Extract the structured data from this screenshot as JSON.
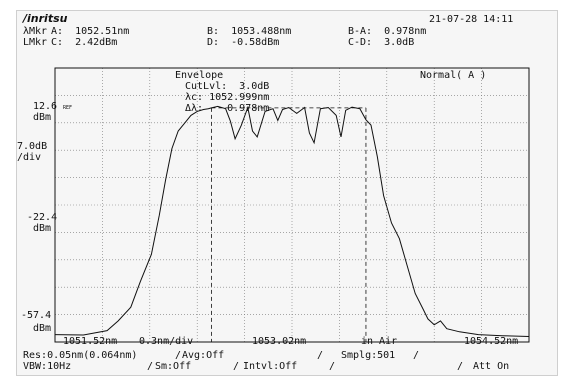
{
  "header": {
    "brand": "/inritsu",
    "datetime": "21-07-28 14:11"
  },
  "markers": {
    "row1_label": "λMkr",
    "row2_label": "LMkr",
    "A": "A:  1052.51nm",
    "B": "B:  1053.488nm",
    "BA": "B-A:  0.978nm",
    "C": "C:  2.42dBm",
    "D": "D:  -0.58dBm",
    "CD": "C-D:  3.0dB"
  },
  "analysis": {
    "title": "Envelope",
    "cutlvl": "CutLvl:  3.0dB",
    "lambda_c": "λc: 1052.999nm",
    "delta_lambda": "Δλ:    0.978nm",
    "mode": "Normal( A )"
  },
  "yaxis": {
    "ref_value": "12.6",
    "ref_unit": "dBm",
    "ref_tag": "REF",
    "scale_value": "7.0dB",
    "scale_unit": "/div",
    "mid_value": "-22.4",
    "mid_unit": "dBm",
    "bottom_value": "-57.4",
    "bottom_unit": "dBm"
  },
  "xaxis": {
    "start": "1051.52nm",
    "span": "0.3nm/div",
    "center": "1053.02nm",
    "medium": "in Air",
    "stop": "1054.52nm"
  },
  "status": {
    "res": "Res:0.05nm(0.064nm)",
    "avg": "Avg:Off",
    "smplg": "Smplg:501",
    "vbw": "VBW:10Hz",
    "sm": "Sm:Off",
    "intvl": "Intvl:Off",
    "att": "Att On"
  },
  "chart_data": {
    "type": "line",
    "x_unit": "nm",
    "y_unit": "dBm",
    "xlim": [
      1051.52,
      1054.52
    ],
    "ylim": [
      -57.4,
      12.6
    ],
    "x_division": 0.3,
    "y_division": 7.0,
    "grid": true,
    "cursors_x": [
      1052.51,
      1053.488
    ],
    "cutlevel_y": 2.42,
    "series": [
      {
        "x": [
          1051.52,
          1051.7,
          1051.85,
          1051.92,
          1052.0,
          1052.06,
          1052.13,
          1052.18,
          1052.22,
          1052.26,
          1052.3,
          1052.34,
          1052.38,
          1052.42,
          1052.46,
          1052.49,
          1052.51,
          1052.55,
          1052.6,
          1052.63,
          1052.66,
          1052.7,
          1052.74,
          1052.77,
          1052.8,
          1052.85,
          1052.9,
          1052.93,
          1052.96,
          1053.0,
          1053.05,
          1053.1,
          1053.13,
          1053.16,
          1053.2,
          1053.25,
          1053.3,
          1053.33,
          1053.36,
          1053.4,
          1053.45,
          1053.488,
          1053.52,
          1053.56,
          1053.6,
          1053.65,
          1053.7,
          1053.75,
          1053.8,
          1053.85,
          1053.88,
          1053.92,
          1053.96,
          1054.0,
          1054.08,
          1054.2,
          1054.35,
          1054.52
        ],
        "y": [
          -55.5,
          -55.6,
          -54.5,
          -52.0,
          -48.5,
          -42.0,
          -35.0,
          -25.0,
          -16.0,
          -8.0,
          -3.5,
          -1.5,
          0.5,
          1.5,
          2.0,
          2.2,
          2.4,
          2.8,
          2.2,
          -1.0,
          -5.5,
          -2.0,
          2.5,
          -3.5,
          -5.0,
          1.5,
          2.2,
          -0.8,
          2.0,
          2.5,
          1.0,
          2.5,
          -4.0,
          -6.5,
          2.2,
          2.5,
          0.5,
          -5.0,
          1.8,
          2.6,
          2.2,
          -0.6,
          -2.0,
          -10.0,
          -20.0,
          -27.0,
          -31.0,
          -38.0,
          -45.0,
          -49.0,
          -51.5,
          -53.0,
          -52.0,
          -54.0,
          -54.8,
          -55.5,
          -55.8,
          -56.0
        ]
      }
    ]
  }
}
